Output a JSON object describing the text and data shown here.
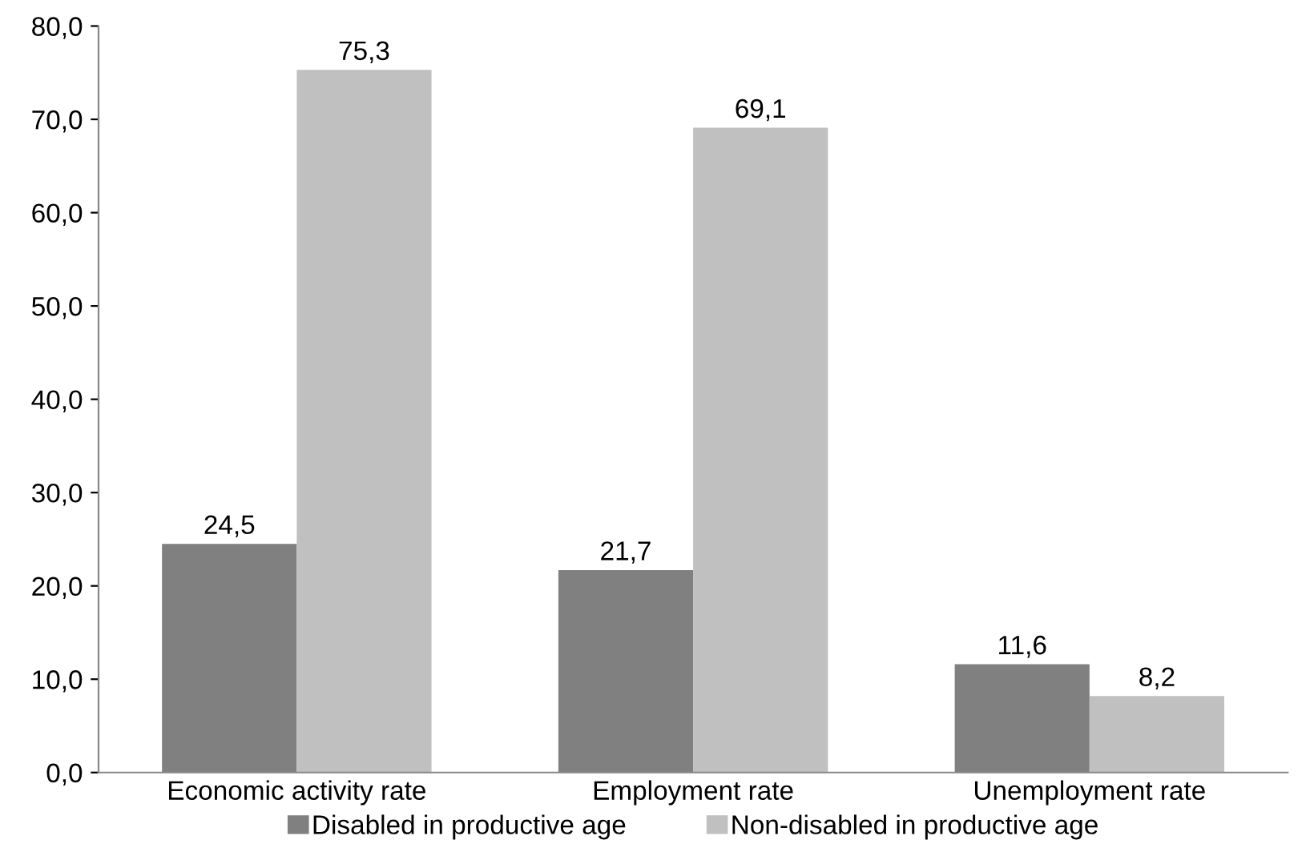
{
  "chart_data": {
    "type": "bar",
    "categories": [
      "Economic activity rate",
      "Employment rate",
      "Unemployment rate"
    ],
    "series": [
      {
        "name": "Disabled in productive age",
        "color": "#808080",
        "values": [
          24.5,
          21.7,
          11.6
        ],
        "value_labels": [
          "24,5",
          "21,7",
          "11,6"
        ]
      },
      {
        "name": "Non-disabled in productive age",
        "color": "#c0c0c0",
        "values": [
          75.3,
          69.1,
          8.2
        ],
        "value_labels": [
          "75,3",
          "69,1",
          "8,2"
        ]
      }
    ],
    "ylim": [
      0,
      80
    ],
    "yticks": [
      {
        "value": 0,
        "label": "0,0"
      },
      {
        "value": 10,
        "label": "10,0"
      },
      {
        "value": 20,
        "label": "20,0"
      },
      {
        "value": 30,
        "label": "30,0"
      },
      {
        "value": 40,
        "label": "40,0"
      },
      {
        "value": 50,
        "label": "50,0"
      },
      {
        "value": 60,
        "label": "60,0"
      },
      {
        "value": 70,
        "label": "70,0"
      },
      {
        "value": 80,
        "label": "80,0"
      }
    ],
    "grid": false,
    "legend": "bottom"
  }
}
